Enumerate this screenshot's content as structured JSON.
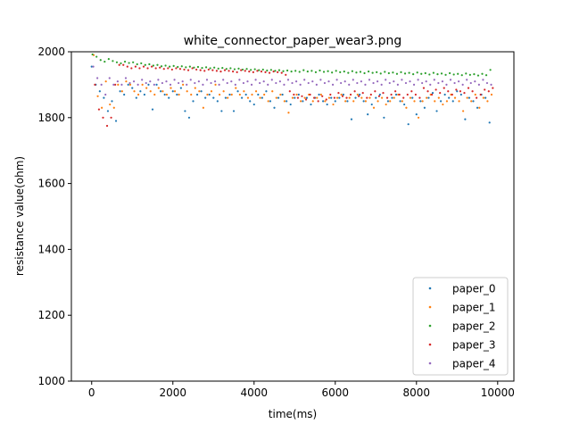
{
  "chart_data": {
    "type": "scatter",
    "title": "white_connector_paper_wear3.png",
    "xlabel": "time(ms)",
    "ylabel": "resistance value(ohm)",
    "xlim": [
      -500,
      10400
    ],
    "ylim": [
      1000,
      2000
    ],
    "xticks": [
      0,
      2000,
      4000,
      6000,
      8000,
      10000
    ],
    "yticks": [
      1000,
      1200,
      1400,
      1600,
      1800,
      2000
    ],
    "xtick_labels": [
      "0",
      "2000",
      "4000",
      "6000",
      "8000",
      "10000"
    ],
    "ytick_labels": [
      "1000",
      "1200",
      "1400",
      "1600",
      "1800",
      "2000"
    ],
    "grid": false,
    "legend_position": "lower-right",
    "colors": {
      "paper_0": "#1f77b4",
      "paper_1": "#ff7f0e",
      "paper_2": "#2ca02c",
      "paper_3": "#d62728",
      "paper_4": "#9467bd"
    },
    "series": [
      {
        "name": "paper_0",
        "color": "#1f77b4",
        "x": [
          0,
          100,
          200,
          300,
          400,
          500,
          600,
          700,
          800,
          900,
          1000,
          1100,
          1200,
          1300,
          1400,
          1500,
          1600,
          1700,
          1800,
          1900,
          2000,
          2100,
          2200,
          2300,
          2400,
          2500,
          2600,
          2700,
          2800,
          2900,
          3000,
          3100,
          3200,
          3300,
          3400,
          3500,
          3600,
          3700,
          3800,
          3900,
          4000,
          4100,
          4200,
          4300,
          4400,
          4500,
          4600,
          4700,
          4800,
          4900,
          5000,
          5100,
          5200,
          5300,
          5400,
          5500,
          5600,
          5700,
          5800,
          5900,
          6000,
          6100,
          6200,
          6300,
          6400,
          6500,
          6600,
          6700,
          6800,
          6900,
          7000,
          7100,
          7200,
          7300,
          7400,
          7500,
          7600,
          7700,
          7800,
          7900,
          8000,
          8100,
          8200,
          8300,
          8400,
          8500,
          8600,
          8700,
          8800,
          8900,
          9000,
          9100,
          9200,
          9300,
          9400,
          9500,
          9600,
          9700,
          9800
        ],
        "y": [
          1955,
          1900,
          1880,
          1860,
          1820,
          1850,
          1790,
          1880,
          1870,
          1900,
          1890,
          1860,
          1880,
          1870,
          1900,
          1825,
          1900,
          1880,
          1870,
          1860,
          1880,
          1870,
          1890,
          1820,
          1800,
          1850,
          1870,
          1880,
          1860,
          1870,
          1860,
          1850,
          1820,
          1860,
          1870,
          1820,
          1880,
          1860,
          1870,
          1850,
          1840,
          1870,
          1860,
          1880,
          1850,
          1830,
          1860,
          1870,
          1850,
          1840,
          1860,
          1870,
          1850,
          1860,
          1840,
          1860,
          1870,
          1850,
          1840,
          1860,
          1850,
          1860,
          1870,
          1850,
          1795,
          1860,
          1870,
          1850,
          1810,
          1840,
          1860,
          1870,
          1800,
          1850,
          1860,
          1870,
          1850,
          1840,
          1780,
          1860,
          1810,
          1850,
          1830,
          1860,
          1875,
          1820,
          1850,
          1870,
          1860,
          1850,
          1880,
          1870,
          1795,
          1860,
          1850,
          1830,
          1870,
          1860,
          1785
        ]
      },
      {
        "name": "paper_1",
        "color": "#ff7f0e",
        "x": [
          50,
          150,
          250,
          350,
          450,
          550,
          650,
          750,
          850,
          950,
          1050,
          1150,
          1250,
          1350,
          1450,
          1550,
          1650,
          1750,
          1850,
          1950,
          2050,
          2150,
          2250,
          2350,
          2450,
          2550,
          2650,
          2750,
          2850,
          2950,
          3050,
          3150,
          3250,
          3350,
          3450,
          3550,
          3650,
          3750,
          3850,
          3950,
          4050,
          4150,
          4250,
          4350,
          4450,
          4550,
          4650,
          4750,
          4850,
          4950,
          5050,
          5150,
          5250,
          5350,
          5450,
          5550,
          5650,
          5750,
          5850,
          5950,
          6050,
          6150,
          6250,
          6350,
          6450,
          6550,
          6650,
          6750,
          6850,
          6950,
          7050,
          7150,
          7250,
          7350,
          7450,
          7550,
          7650,
          7750,
          7850,
          7950,
          8050,
          8150,
          8250,
          8350,
          8450,
          8550,
          8650,
          8750,
          8850,
          8950,
          9050,
          9150,
          9250,
          9350,
          9450,
          9550,
          9650,
          9750,
          9850
        ],
        "y": [
          1990,
          1865,
          1830,
          1910,
          1840,
          1830,
          1900,
          1880,
          1910,
          1900,
          1880,
          1870,
          1900,
          1890,
          1880,
          1870,
          1890,
          1880,
          1870,
          1890,
          1880,
          1870,
          1900,
          1880,
          1870,
          1890,
          1880,
          1830,
          1870,
          1880,
          1900,
          1870,
          1880,
          1860,
          1870,
          1890,
          1870,
          1880,
          1860,
          1870,
          1880,
          1860,
          1870,
          1850,
          1880,
          1860,
          1870,
          1850,
          1815,
          1860,
          1870,
          1850,
          1860,
          1870,
          1850,
          1860,
          1870,
          1850,
          1860,
          1840,
          1860,
          1870,
          1850,
          1860,
          1850,
          1870,
          1860,
          1850,
          1860,
          1830,
          1850,
          1860,
          1840,
          1850,
          1860,
          1870,
          1850,
          1830,
          1860,
          1850,
          1800,
          1850,
          1860,
          1870,
          1850,
          1860,
          1840,
          1850,
          1870,
          1860,
          1850,
          1820,
          1860,
          1850,
          1870,
          1830,
          1860,
          1850,
          1870
        ]
      },
      {
        "name": "paper_2",
        "color": "#2ca02c",
        "x": [
          20,
          120,
          220,
          320,
          420,
          520,
          620,
          720,
          820,
          920,
          1020,
          1120,
          1220,
          1320,
          1420,
          1520,
          1620,
          1720,
          1820,
          1920,
          2020,
          2120,
          2220,
          2320,
          2420,
          2520,
          2620,
          2720,
          2820,
          2920,
          3020,
          3120,
          3220,
          3320,
          3420,
          3520,
          3620,
          3720,
          3820,
          3920,
          4020,
          4120,
          4220,
          4320,
          4420,
          4520,
          4620,
          4720,
          4820,
          4920,
          5020,
          5120,
          5220,
          5320,
          5420,
          5520,
          5620,
          5720,
          5820,
          5920,
          6020,
          6120,
          6220,
          6320,
          6420,
          6520,
          6620,
          6720,
          6820,
          6920,
          7020,
          7120,
          7220,
          7320,
          7420,
          7520,
          7620,
          7720,
          7820,
          7920,
          8020,
          8120,
          8220,
          8320,
          8420,
          8520,
          8620,
          8720,
          8820,
          8920,
          9020,
          9120,
          9220,
          9320,
          9420,
          9520,
          9620,
          9720,
          9820
        ],
        "y": [
          1992,
          1985,
          1975,
          1970,
          1978,
          1972,
          1968,
          1965,
          1970,
          1966,
          1968,
          1962,
          1965,
          1960,
          1962,
          1958,
          1960,
          1956,
          1958,
          1955,
          1957,
          1954,
          1956,
          1953,
          1955,
          1952,
          1954,
          1951,
          1953,
          1950,
          1952,
          1949,
          1951,
          1948,
          1950,
          1947,
          1949,
          1946,
          1948,
          1945,
          1947,
          1944,
          1946,
          1943,
          1945,
          1942,
          1944,
          1941,
          1943,
          1940,
          1942,
          1939,
          1944,
          1940,
          1942,
          1938,
          1943,
          1939,
          1941,
          1937,
          1942,
          1938,
          1940,
          1936,
          1941,
          1937,
          1939,
          1935,
          1940,
          1936,
          1938,
          1934,
          1939,
          1935,
          1937,
          1933,
          1938,
          1934,
          1936,
          1932,
          1937,
          1933,
          1935,
          1931,
          1936,
          1932,
          1934,
          1930,
          1935,
          1931,
          1933,
          1929,
          1934,
          1930,
          1932,
          1928,
          1933,
          1929,
          1945
        ]
      },
      {
        "name": "paper_3",
        "color": "#d62728",
        "x": [
          80,
          180,
          280,
          380,
          480,
          580,
          680,
          780,
          880,
          980,
          1080,
          1180,
          1280,
          1380,
          1480,
          1580,
          1680,
          1780,
          1880,
          1980,
          2080,
          2180,
          2280,
          2380,
          2480,
          2580,
          2680,
          2780,
          2880,
          2980,
          3080,
          3180,
          3280,
          3380,
          3480,
          3580,
          3680,
          3780,
          3880,
          3980,
          4080,
          4180,
          4280,
          4380,
          4480,
          4580,
          4680,
          4780,
          4880,
          4980,
          5080,
          5180,
          5280,
          5380,
          5480,
          5580,
          5680,
          5780,
          5880,
          5980,
          6080,
          6180,
          6280,
          6380,
          6480,
          6580,
          6680,
          6780,
          6880,
          6980,
          7080,
          7180,
          7280,
          7380,
          7480,
          7580,
          7680,
          7780,
          7880,
          7980,
          8080,
          8180,
          8280,
          8380,
          8480,
          8580,
          8680,
          8780,
          8880,
          8980,
          9080,
          9180,
          9280,
          9380,
          9480,
          9580,
          9680,
          9780,
          9880
        ],
        "y": [
          1900,
          1825,
          1800,
          1775,
          1800,
          1900,
          1960,
          1960,
          1955,
          1950,
          1955,
          1950,
          1955,
          1950,
          1955,
          1950,
          1952,
          1948,
          1950,
          1946,
          1950,
          1948,
          1946,
          1944,
          1950,
          1946,
          1944,
          1942,
          1946,
          1944,
          1942,
          1940,
          1944,
          1942,
          1940,
          1938,
          1944,
          1942,
          1940,
          1938,
          1942,
          1940,
          1938,
          1936,
          1940,
          1938,
          1936,
          1930,
          1880,
          1870,
          1860,
          1865,
          1855,
          1870,
          1860,
          1850,
          1865,
          1855,
          1870,
          1860,
          1875,
          1865,
          1860,
          1870,
          1880,
          1865,
          1875,
          1860,
          1870,
          1880,
          1865,
          1875,
          1860,
          1870,
          1880,
          1870,
          1860,
          1870,
          1880,
          1870,
          1860,
          1890,
          1880,
          1870,
          1885,
          1875,
          1890,
          1880,
          1870,
          1885,
          1880,
          1875,
          1890,
          1880,
          1860,
          1870,
          1885,
          1880,
          1890
        ]
      },
      {
        "name": "paper_4",
        "color": "#9467bd",
        "x": [
          40,
          140,
          240,
          340,
          440,
          540,
          640,
          740,
          840,
          940,
          1040,
          1140,
          1240,
          1340,
          1440,
          1540,
          1640,
          1740,
          1840,
          1940,
          2040,
          2140,
          2240,
          2340,
          2440,
          2540,
          2640,
          2740,
          2840,
          2940,
          3040,
          3140,
          3240,
          3340,
          3440,
          3540,
          3640,
          3740,
          3840,
          3940,
          4040,
          4140,
          4240,
          4340,
          4440,
          4540,
          4640,
          4740,
          4840,
          4940,
          5040,
          5140,
          5240,
          5340,
          5440,
          5540,
          5640,
          5740,
          5840,
          5940,
          6040,
          6140,
          6240,
          6340,
          6440,
          6540,
          6640,
          6740,
          6840,
          6940,
          7040,
          7140,
          7240,
          7340,
          7440,
          7540,
          7640,
          7740,
          7840,
          7940,
          8040,
          8140,
          8240,
          8340,
          8440,
          8540,
          8640,
          8740,
          8840,
          8940,
          9040,
          9140,
          9240,
          9340,
          9440,
          9540,
          9640,
          9740,
          9840
        ],
        "y": [
          1955,
          1920,
          1900,
          1870,
          1920,
          1900,
          1910,
          1900,
          1920,
          1905,
          1910,
          1900,
          1915,
          1905,
          1910,
          1900,
          1915,
          1905,
          1910,
          1900,
          1915,
          1905,
          1910,
          1900,
          1915,
          1905,
          1910,
          1900,
          1915,
          1905,
          1910,
          1900,
          1915,
          1905,
          1910,
          1900,
          1915,
          1905,
          1910,
          1900,
          1915,
          1905,
          1910,
          1900,
          1915,
          1905,
          1910,
          1900,
          1915,
          1905,
          1910,
          1900,
          1915,
          1905,
          1910,
          1900,
          1915,
          1905,
          1910,
          1900,
          1915,
          1905,
          1910,
          1900,
          1915,
          1905,
          1910,
          1900,
          1915,
          1905,
          1910,
          1900,
          1915,
          1905,
          1910,
          1900,
          1915,
          1905,
          1910,
          1900,
          1915,
          1905,
          1910,
          1900,
          1915,
          1905,
          1910,
          1900,
          1915,
          1905,
          1910,
          1900,
          1915,
          1905,
          1910,
          1900,
          1915,
          1905,
          1900
        ]
      }
    ]
  }
}
